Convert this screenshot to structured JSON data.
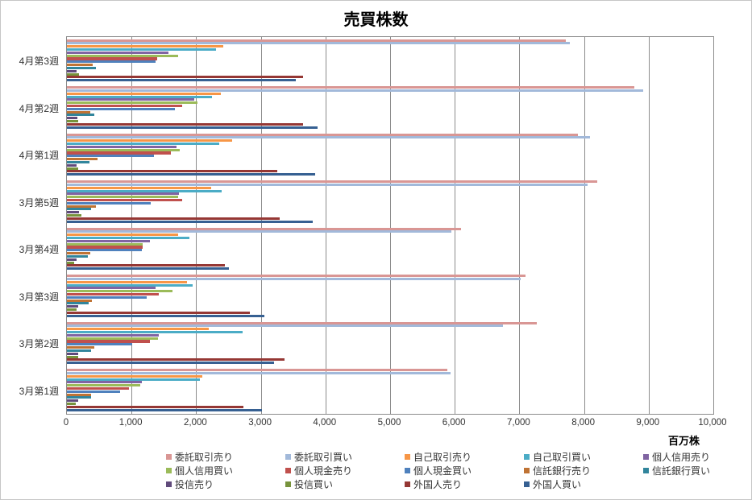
{
  "title": "売買株数",
  "axis": {
    "unit_label": "百万株",
    "x_ticks": [
      "0",
      "1,000",
      "2,000",
      "3,000",
      "4,000",
      "5,000",
      "6,000",
      "7,000",
      "8,000",
      "9,000",
      "10,000"
    ]
  },
  "chart_data": {
    "type": "bar",
    "orientation": "horizontal",
    "title": "売買株数",
    "xlabel": "百万株",
    "ylabel": "",
    "xlim": [
      0,
      10000
    ],
    "x_tick_interval": 1000,
    "grid": true,
    "legend_position": "bottom",
    "categories": [
      "4月第3週",
      "4月第2週",
      "4月第1週",
      "3月第5週",
      "3月第4週",
      "3月第3週",
      "3月第2週",
      "3月第1週"
    ],
    "series": [
      {
        "name": "委託取引売り",
        "color": "#d99694",
        "values": [
          7720,
          8780,
          7900,
          8200,
          6100,
          7100,
          7270,
          5890
        ]
      },
      {
        "name": "委託取引買い",
        "color": "#a2b9da",
        "values": [
          7780,
          8920,
          8090,
          8050,
          5950,
          7020,
          6750,
          5930
        ]
      },
      {
        "name": "自己取引売り",
        "color": "#f79646",
        "values": [
          2420,
          2380,
          2550,
          2230,
          1720,
          1860,
          2190,
          2090
        ]
      },
      {
        "name": "自己取引買い",
        "color": "#4bacc6",
        "values": [
          2310,
          2250,
          2360,
          2390,
          1890,
          1950,
          2720,
          2060
        ]
      },
      {
        "name": "個人信用売り",
        "color": "#8064a2",
        "values": [
          1570,
          1970,
          1690,
          1730,
          1280,
          1370,
          1420,
          1160
        ]
      },
      {
        "name": "個人信用買い",
        "color": "#9bbb59",
        "values": [
          1720,
          2020,
          1750,
          1720,
          1170,
          1630,
          1410,
          1130
        ]
      },
      {
        "name": "個人現金売り",
        "color": "#c0504d",
        "values": [
          1400,
          1780,
          1610,
          1780,
          1170,
          1420,
          1280,
          960
        ]
      },
      {
        "name": "個人現金買い",
        "color": "#4f81bd",
        "values": [
          1370,
          1670,
          1350,
          1300,
          1160,
          1240,
          1010,
          820
        ]
      },
      {
        "name": "信託銀行売り",
        "color": "#bf7334",
        "values": [
          400,
          360,
          470,
          450,
          360,
          390,
          420,
          370
        ]
      },
      {
        "name": "信託銀行買い",
        "color": "#31859c",
        "values": [
          450,
          420,
          350,
          380,
          320,
          340,
          380,
          380
        ]
      },
      {
        "name": "投信売り",
        "color": "#604a7b",
        "values": [
          150,
          160,
          150,
          190,
          150,
          180,
          170,
          170
        ]
      },
      {
        "name": "投信買い",
        "color": "#77933c",
        "values": [
          190,
          170,
          180,
          220,
          110,
          150,
          180,
          140
        ]
      },
      {
        "name": "外国人売り",
        "color": "#953734",
        "values": [
          3650,
          3650,
          3260,
          3290,
          2440,
          2830,
          3370,
          2730
        ]
      },
      {
        "name": "外国人買い",
        "color": "#366092",
        "values": [
          3540,
          3880,
          3840,
          3800,
          2510,
          3060,
          3200,
          3020
        ]
      }
    ]
  }
}
